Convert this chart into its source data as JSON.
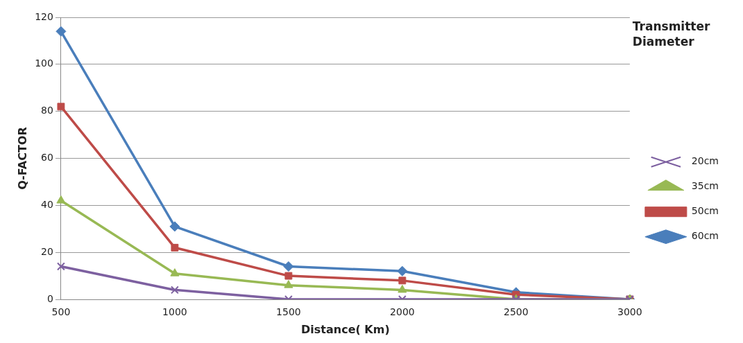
{
  "chart_data": {
    "type": "line",
    "xlabel": "Distance( Km)",
    "ylabel": "Q-FACTOR",
    "legend_title": "Transmitter Diameter",
    "categories": [
      "500",
      "1000",
      "1500",
      "2000",
      "2500",
      "3000"
    ],
    "series": [
      {
        "name": "60cm",
        "color": "#4a7ebb",
        "marker": "diamond",
        "values": [
          114,
          31,
          14,
          12,
          3,
          0
        ]
      },
      {
        "name": "50cm",
        "color": "#be4b48",
        "marker": "square",
        "values": [
          82,
          22,
          10,
          8,
          2,
          0
        ]
      },
      {
        "name": "35cm",
        "color": "#98b954",
        "marker": "triangle",
        "values": [
          42,
          11,
          6,
          4,
          0,
          0
        ]
      },
      {
        "name": "20cm",
        "color": "#7d60a0",
        "marker": "cross",
        "values": [
          14,
          4,
          0,
          0,
          0,
          0
        ]
      }
    ],
    "ylim": [
      0,
      120
    ],
    "yticks": [
      0,
      20,
      40,
      60,
      80,
      100,
      120
    ],
    "grid": "y",
    "legend": "right",
    "line_style": "solid"
  }
}
